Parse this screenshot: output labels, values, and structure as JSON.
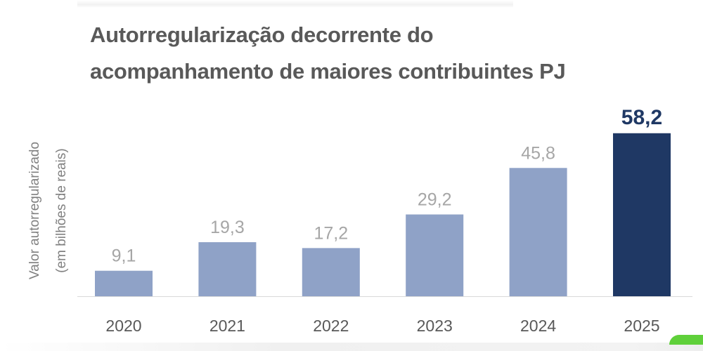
{
  "chart_data": {
    "type": "bar",
    "title": "Autorregularização decorrente do acompanhamento de maiores contribuintes PJ",
    "title_lines": [
      "Autorregularização decorrente do",
      "acompanhamento de maiores contribuintes PJ"
    ],
    "ylabel_lines": [
      "Valor autorregularizado",
      "(em bilhões de reais)"
    ],
    "xlabel": "",
    "categories": [
      "2020",
      "2021",
      "2022",
      "2023",
      "2024",
      "2025"
    ],
    "values": [
      9.1,
      19.3,
      17.2,
      29.2,
      45.8,
      58.2
    ],
    "data_labels": [
      "9,1",
      "19,3",
      "17,2",
      "29,2",
      "45,8",
      "58,2"
    ],
    "highlight_index": 5,
    "ylim": [
      0,
      60
    ],
    "grid": false,
    "legend": "none",
    "colors": {
      "bar": "#8fa2c7",
      "highlight": "#1f3864",
      "label": "#a6a6a6",
      "highlight_label": "#1f3864",
      "title": "#595959"
    }
  }
}
